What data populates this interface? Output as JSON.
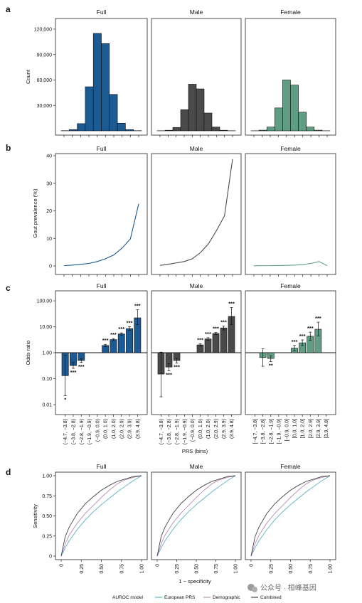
{
  "colors": {
    "full": "#1c5a94",
    "male": "#4a4a4a",
    "female": "#5f9e84",
    "european_prs": "#5ab3c6",
    "demographic": "#b88bb8",
    "combined": "#444444"
  },
  "watermark": {
    "icon": "wechat-icon",
    "text": "公众号 · 桓峰基因"
  },
  "chart_data": [
    {
      "panel": "a",
      "type": "bar",
      "facets": [
        "Full",
        "Male",
        "Female"
      ],
      "ylabel": "Count",
      "yticks": [
        "30,000",
        "60,000",
        "90,000",
        "120,000"
      ],
      "ytick_values": [
        30000,
        60000,
        90000,
        120000
      ],
      "ylim": [
        0,
        120000
      ],
      "series": [
        {
          "facet": "Full",
          "values": [
            200,
            1500,
            8500,
            52000,
            115000,
            103000,
            43000,
            9000,
            1500,
            200
          ]
        },
        {
          "facet": "Male",
          "values": [
            100,
            700,
            4000,
            25000,
            55000,
            49500,
            21000,
            4500,
            700,
            100
          ]
        },
        {
          "facet": "Female",
          "values": [
            100,
            800,
            4500,
            27000,
            60000,
            54000,
            22000,
            4500,
            800,
            100
          ]
        }
      ]
    },
    {
      "panel": "b",
      "type": "line",
      "facets": [
        "Full",
        "Male",
        "Female"
      ],
      "ylabel": "Gout prevalence (%)",
      "yticks": [
        "0",
        "10",
        "20",
        "30",
        "40"
      ],
      "ytick_values": [
        0,
        10,
        20,
        30,
        40
      ],
      "ylim": [
        0,
        40
      ],
      "series": [
        {
          "facet": "Full",
          "values": [
            0.1,
            0.3,
            0.6,
            0.9,
            1.6,
            2.6,
            4.0,
            6.5,
            9.8,
            22.5
          ]
        },
        {
          "facet": "Male",
          "values": [
            0.2,
            0.6,
            1.1,
            1.6,
            2.6,
            4.8,
            8.0,
            12.8,
            18.2,
            38.8
          ]
        },
        {
          "facet": "Female",
          "values": [
            0.05,
            0.1,
            0.1,
            0.15,
            0.2,
            0.3,
            0.5,
            0.9,
            1.6,
            0.1
          ]
        }
      ]
    },
    {
      "panel": "c",
      "type": "bar",
      "facets": [
        "Full",
        "Male",
        "Female"
      ],
      "ylabel": "Odds ratio",
      "log_scale": true,
      "yticks": [
        "0.01",
        "0.10",
        "1.00",
        "10.00",
        "100.00"
      ],
      "ytick_values": [
        0.01,
        0.1,
        1,
        10,
        100
      ],
      "ylim": [
        0.005,
        200
      ],
      "xlabel": "PRS (bins)",
      "categories_by_facet": [
        [
          "(−4.7, −3.8)",
          "(−3.8, −2.8)",
          "(−2.8, −1.9)",
          "(−1.9, −0.9)",
          "(−0.9, 0.0)",
          "(0.0, 1.0)",
          "(1.0, 2.0)",
          "(2.0, 2.9)",
          "(2.9, 3.9)",
          "(3.9, 4.8)"
        ],
        [
          "(−4.7, −3.8)",
          "(−3.8, −2.8)",
          "(−2.8, −1.9)",
          "(−1.9, −0.9)",
          "(−0.9, 0.0)",
          "(0.0, 1.0)",
          "(1.0, 2.0)",
          "(2.0, 2.9)",
          "(2.9, 3.9)",
          "(3.9, 4.8)"
        ],
        [
          "[−4.7, −3.8]",
          "[−3.8, −2.8]",
          "[−2.8, −1.9]",
          "[−1.9, −0.9]",
          "[−0.9, 0.0]",
          "[0.0, 1.0]",
          "[1.0, 2.0]",
          "[2.0, 2.9]",
          "[2.9, 3.9]",
          "[3.9, 4.8]"
        ]
      ],
      "series": [
        {
          "facet": "Full",
          "values": [
            0.13,
            0.32,
            0.5,
            1.0,
            1.9,
            3.2,
            5.3,
            8.5,
            22
          ],
          "lower": [
            0.022,
            0.25,
            0.42,
            1.0,
            1.7,
            2.9,
            4.8,
            7.2,
            12
          ],
          "upper": [
            0.8,
            0.42,
            0.6,
            1.0,
            2.1,
            3.5,
            5.8,
            10.0,
            45
          ],
          "sig": [
            "*",
            "***",
            "***",
            "",
            "***",
            "***",
            "***",
            "***",
            "***"
          ]
        },
        {
          "facet": "Male",
          "values": [
            0.15,
            0.28,
            0.5,
            1.0,
            2.0,
            3.4,
            5.5,
            9.0,
            25
          ],
          "lower": [
            0.02,
            0.2,
            0.4,
            1.0,
            1.8,
            3.0,
            5.0,
            7.5,
            12
          ],
          "upper": [
            1.05,
            0.38,
            0.62,
            1.0,
            2.2,
            3.8,
            6.0,
            10.5,
            55
          ],
          "sig": [
            "",
            "***",
            "***",
            "",
            "***",
            "***",
            "***",
            "***",
            "***"
          ]
        },
        {
          "facet": "Female",
          "values": [
            null,
            0.65,
            0.6,
            1.0,
            1.5,
            2.4,
            4.3,
            8.0,
            null
          ],
          "lower": [
            null,
            0.3,
            0.45,
            1.0,
            1.2,
            1.9,
            3.0,
            4.5,
            null
          ],
          "upper": [
            null,
            1.4,
            0.75,
            1.0,
            1.9,
            3.1,
            6.2,
            15.0,
            null
          ],
          "sig": [
            "",
            "",
            "**",
            "",
            "***",
            "***",
            "***",
            "***",
            ""
          ]
        }
      ]
    },
    {
      "panel": "d",
      "type": "line",
      "facets": [
        "Full",
        "Male",
        "Female"
      ],
      "xlabel": "1 − specificity",
      "ylabel": "Sensitivity",
      "xticks": [
        "0",
        "0.25",
        "0.50",
        "0.75",
        "1.00"
      ],
      "yticks": [
        "0",
        "0.25",
        "0.50",
        "0.75",
        "1.00"
      ],
      "xlim": [
        0,
        1
      ],
      "ylim": [
        0,
        1
      ],
      "legend_title": "AUROC model",
      "legend_position": "bottom",
      "series": [
        {
          "name": "European PRS",
          "x": [
            0,
            0.05,
            0.1,
            0.2,
            0.3,
            0.4,
            0.5,
            0.6,
            0.7,
            0.8,
            0.9,
            1.0
          ],
          "y": [
            0,
            0.1,
            0.19,
            0.33,
            0.45,
            0.55,
            0.64,
            0.72,
            0.8,
            0.87,
            0.94,
            1.0
          ]
        },
        {
          "name": "Demographic",
          "x": [
            0,
            0.05,
            0.1,
            0.2,
            0.3,
            0.4,
            0.5,
            0.6,
            0.7,
            0.8,
            0.9,
            1.0
          ],
          "y": [
            0,
            0.15,
            0.26,
            0.41,
            0.53,
            0.63,
            0.73,
            0.82,
            0.9,
            0.95,
            0.98,
            1.0
          ]
        },
        {
          "name": "Combined",
          "x": [
            0,
            0.05,
            0.1,
            0.2,
            0.3,
            0.4,
            0.5,
            0.6,
            0.7,
            0.8,
            0.9,
            1.0
          ],
          "y": [
            0,
            0.24,
            0.36,
            0.53,
            0.65,
            0.74,
            0.82,
            0.88,
            0.93,
            0.96,
            0.99,
            1.0
          ]
        }
      ]
    }
  ]
}
